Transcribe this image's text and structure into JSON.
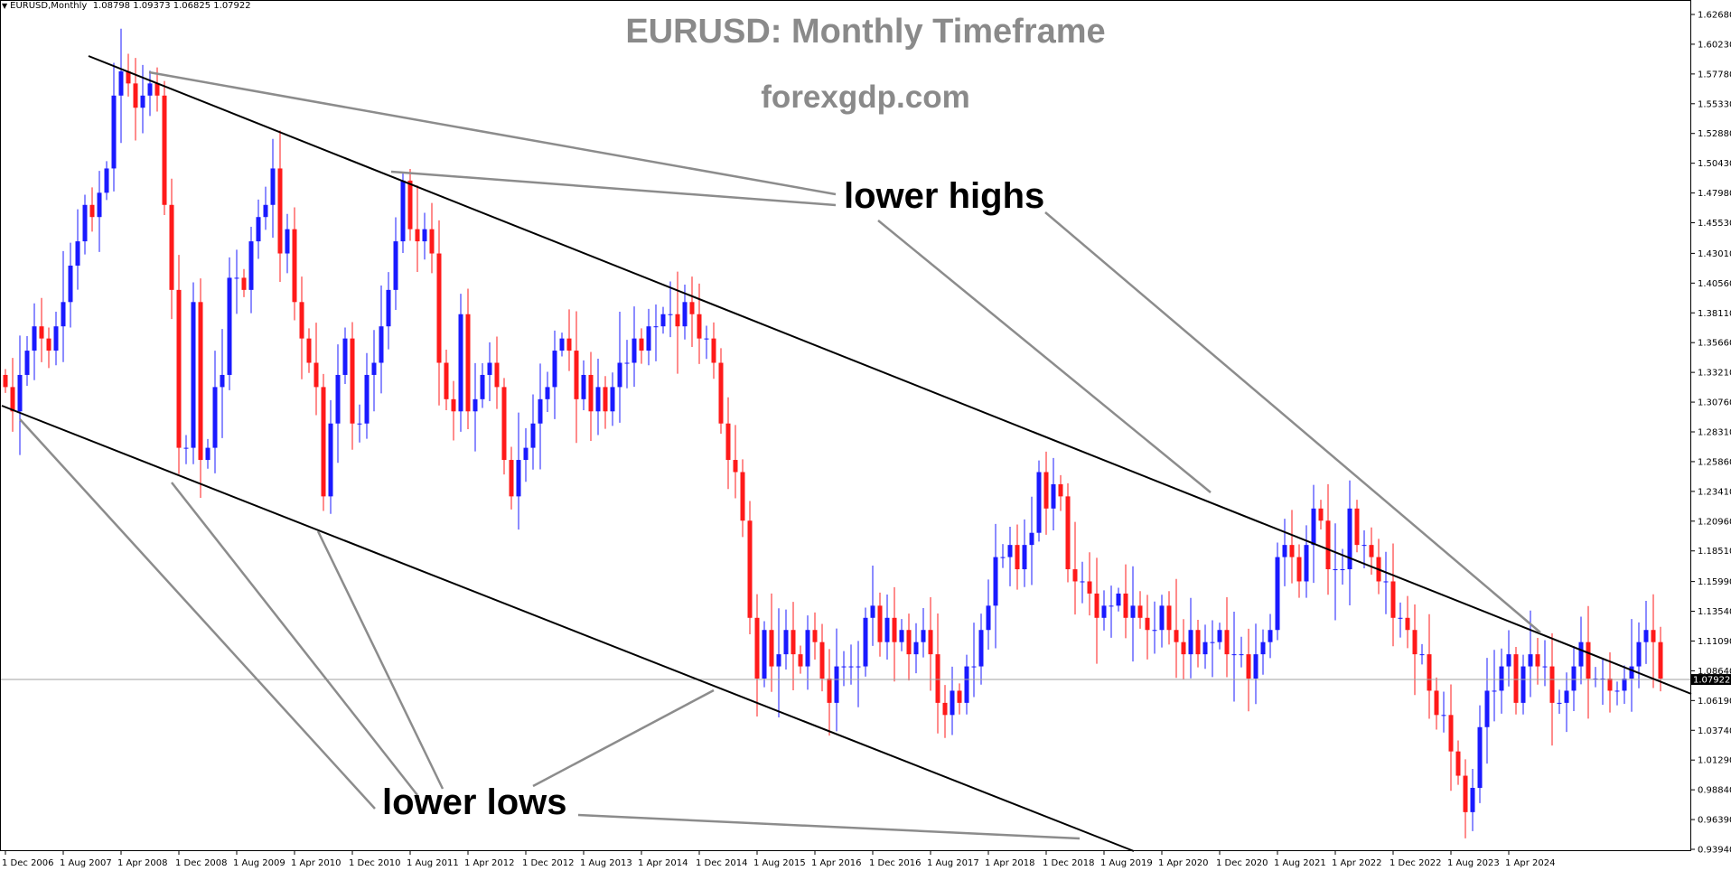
{
  "chart_data": {
    "type": "candlestick",
    "symbol": "EURUSD,Monthly",
    "ohlc_header": "1.08798 1.09373 1.06825 1.07922",
    "current_price": "1.07922",
    "title": "EURUSD: Monthly Timeframe",
    "subtitle": "forexgdp.com",
    "annotations": [
      "lower highs",
      "lower lows"
    ],
    "ylim": [
      0.9394,
      1.6268
    ],
    "y_ticks": [
      "1.62680",
      "1.60230",
      "1.57780",
      "1.55330",
      "1.52880",
      "1.50430",
      "1.47980",
      "1.45530",
      "1.43010",
      "1.40560",
      "1.38110",
      "1.35660",
      "1.33210",
      "1.30760",
      "1.28310",
      "1.25860",
      "1.23410",
      "1.20960",
      "1.18510",
      "1.15990",
      "1.13540",
      "1.11090",
      "1.08640",
      "1.06190",
      "1.03740",
      "1.01290",
      "0.98840",
      "0.96390",
      "0.93940"
    ],
    "x_ticks": [
      "1 Dec 2006",
      "1 Aug 2007",
      "1 Apr 2008",
      "1 Dec 2008",
      "1 Aug 2009",
      "1 Apr 2010",
      "1 Dec 2010",
      "1 Aug 2011",
      "1 Apr 2012",
      "1 Dec 2012",
      "1 Aug 2013",
      "1 Apr 2014",
      "1 Dec 2014",
      "1 Aug 2015",
      "1 Apr 2016",
      "1 Dec 2016",
      "1 Aug 2017",
      "1 Apr 2018",
      "1 Dec 2018",
      "1 Aug 2019",
      "1 Apr 2020",
      "1 Dec 2020",
      "1 Aug 2021",
      "1 Apr 2022",
      "1 Dec 2022",
      "1 Aug 2023",
      "1 Apr 2024"
    ],
    "closes": [
      1.32,
      1.3,
      1.33,
      1.35,
      1.37,
      1.36,
      1.35,
      1.37,
      1.39,
      1.42,
      1.44,
      1.47,
      1.46,
      1.48,
      1.5,
      1.56,
      1.58,
      1.57,
      1.55,
      1.56,
      1.57,
      1.56,
      1.47,
      1.4,
      1.27,
      1.27,
      1.39,
      1.26,
      1.27,
      1.32,
      1.33,
      1.41,
      1.41,
      1.4,
      1.44,
      1.46,
      1.47,
      1.5,
      1.43,
      1.45,
      1.39,
      1.36,
      1.34,
      1.32,
      1.23,
      1.29,
      1.33,
      1.36,
      1.29,
      1.29,
      1.33,
      1.34,
      1.37,
      1.4,
      1.44,
      1.49,
      1.45,
      1.44,
      1.45,
      1.43,
      1.34,
      1.31,
      1.3,
      1.38,
      1.3,
      1.31,
      1.33,
      1.34,
      1.32,
      1.26,
      1.23,
      1.26,
      1.27,
      1.29,
      1.31,
      1.32,
      1.35,
      1.36,
      1.35,
      1.31,
      1.33,
      1.3,
      1.32,
      1.3,
      1.32,
      1.34,
      1.34,
      1.36,
      1.35,
      1.37,
      1.37,
      1.38,
      1.38,
      1.37,
      1.39,
      1.38,
      1.36,
      1.36,
      1.34,
      1.29,
      1.26,
      1.25,
      1.21,
      1.13,
      1.08,
      1.12,
      1.09,
      1.1,
      1.12,
      1.1,
      1.09,
      1.12,
      1.11,
      1.08,
      1.06,
      1.09,
      1.09,
      1.09,
      1.09,
      1.13,
      1.14,
      1.11,
      1.13,
      1.11,
      1.12,
      1.1,
      1.11,
      1.12,
      1.1,
      1.06,
      1.05,
      1.07,
      1.06,
      1.09,
      1.09,
      1.12,
      1.14,
      1.18,
      1.18,
      1.19,
      1.17,
      1.19,
      1.2,
      1.25,
      1.22,
      1.24,
      1.23,
      1.17,
      1.16,
      1.16,
      1.15,
      1.13,
      1.14,
      1.14,
      1.15,
      1.13,
      1.14,
      1.13,
      1.12,
      1.12,
      1.14,
      1.12,
      1.11,
      1.1,
      1.12,
      1.1,
      1.11,
      1.11,
      1.12,
      1.1,
      1.1,
      1.1,
      1.08,
      1.1,
      1.11,
      1.12,
      1.18,
      1.19,
      1.18,
      1.16,
      1.19,
      1.22,
      1.21,
      1.17,
      1.17,
      1.17,
      1.22,
      1.19,
      1.19,
      1.18,
      1.16,
      1.16,
      1.13,
      1.13,
      1.12,
      1.1,
      1.1,
      1.07,
      1.05,
      1.05,
      1.02,
      1.0,
      0.97,
      0.99,
      1.04,
      1.07,
      1.07,
      1.09,
      1.1,
      1.06,
      1.09,
      1.1,
      1.09,
      1.09,
      1.06,
      1.06,
      1.07,
      1.09,
      1.11,
      1.08,
      1.08,
      1.08,
      1.07,
      1.07,
      1.08,
      1.09,
      1.11,
      1.12,
      1.11,
      1.08
    ]
  }
}
